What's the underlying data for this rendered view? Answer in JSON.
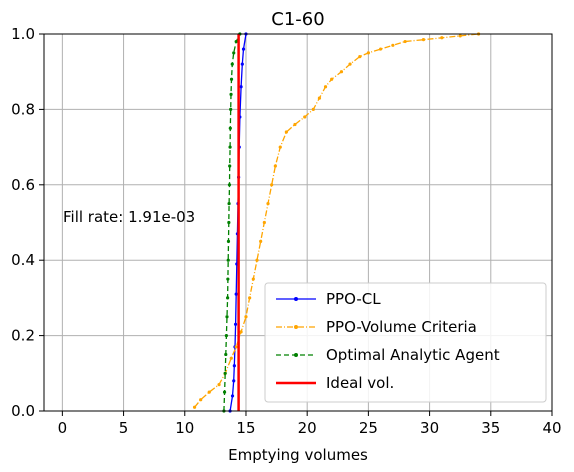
{
  "chart_data": {
    "type": "line",
    "title": "C1-60",
    "xlabel": "Emptying volumes",
    "ylabel": "",
    "xlim": [
      -1.5,
      40
    ],
    "ylim": [
      0,
      1
    ],
    "x_ticks": [
      "0",
      "5",
      "10",
      "15",
      "20",
      "25",
      "30",
      "35",
      "40"
    ],
    "y_ticks": [
      "0.0",
      "0.2",
      "0.4",
      "0.6",
      "0.8",
      "1.0"
    ],
    "grid": true,
    "legend_position": "lower-right",
    "annotation": "Fill rate: 1.91e-03",
    "series": [
      {
        "name": "PPO-CL",
        "color": "#0000ff",
        "style": "solid",
        "marker": "dot",
        "points": [
          [
            13.7,
            0.0
          ],
          [
            13.9,
            0.04
          ],
          [
            14.0,
            0.08
          ],
          [
            14.05,
            0.12
          ],
          [
            14.1,
            0.17
          ],
          [
            14.15,
            0.23
          ],
          [
            14.2,
            0.31
          ],
          [
            14.25,
            0.39
          ],
          [
            14.3,
            0.47
          ],
          [
            14.35,
            0.55
          ],
          [
            14.4,
            0.62
          ],
          [
            14.45,
            0.7
          ],
          [
            14.5,
            0.78
          ],
          [
            14.6,
            0.86
          ],
          [
            14.7,
            0.92
          ],
          [
            14.8,
            0.96
          ],
          [
            15.0,
            1.0
          ]
        ]
      },
      {
        "name": "PPO-Volume Criteria",
        "color": "#ffa500",
        "style": "dashdot",
        "marker": "dot",
        "points": [
          [
            10.8,
            0.01
          ],
          [
            11.3,
            0.03
          ],
          [
            12.0,
            0.05
          ],
          [
            12.8,
            0.07
          ],
          [
            13.3,
            0.1
          ],
          [
            13.8,
            0.14
          ],
          [
            14.2,
            0.17
          ],
          [
            14.6,
            0.21
          ],
          [
            15.0,
            0.25
          ],
          [
            15.3,
            0.3
          ],
          [
            15.6,
            0.35
          ],
          [
            15.9,
            0.4
          ],
          [
            16.2,
            0.45
          ],
          [
            16.5,
            0.5
          ],
          [
            16.8,
            0.55
          ],
          [
            17.1,
            0.6
          ],
          [
            17.4,
            0.65
          ],
          [
            17.8,
            0.7
          ],
          [
            18.3,
            0.74
          ],
          [
            19.0,
            0.76
          ],
          [
            19.8,
            0.78
          ],
          [
            20.5,
            0.8
          ],
          [
            21.0,
            0.83
          ],
          [
            21.5,
            0.86
          ],
          [
            22.0,
            0.88
          ],
          [
            22.8,
            0.9
          ],
          [
            23.5,
            0.92
          ],
          [
            24.3,
            0.94
          ],
          [
            25.0,
            0.95
          ],
          [
            26.0,
            0.96
          ],
          [
            27.0,
            0.97
          ],
          [
            28.0,
            0.98
          ],
          [
            29.5,
            0.985
          ],
          [
            31.0,
            0.99
          ],
          [
            32.5,
            0.995
          ],
          [
            34.0,
            1.0
          ]
        ]
      },
      {
        "name": "Optimal Analytic Agent",
        "color": "#008000",
        "style": "dashed",
        "marker": "dot",
        "points": [
          [
            13.2,
            0.0
          ],
          [
            13.25,
            0.05
          ],
          [
            13.3,
            0.1
          ],
          [
            13.35,
            0.15
          ],
          [
            13.4,
            0.2
          ],
          [
            13.45,
            0.25
          ],
          [
            13.5,
            0.3
          ],
          [
            13.52,
            0.35
          ],
          [
            13.55,
            0.4
          ],
          [
            13.57,
            0.45
          ],
          [
            13.6,
            0.5
          ],
          [
            13.62,
            0.55
          ],
          [
            13.65,
            0.6
          ],
          [
            13.67,
            0.65
          ],
          [
            13.7,
            0.7
          ],
          [
            13.72,
            0.75
          ],
          [
            13.75,
            0.8
          ],
          [
            13.78,
            0.84
          ],
          [
            13.82,
            0.88
          ],
          [
            13.88,
            0.92
          ],
          [
            14.0,
            0.95
          ],
          [
            14.2,
            0.98
          ],
          [
            14.5,
            1.0
          ]
        ]
      },
      {
        "name": "Ideal vol.",
        "color": "#ff0000",
        "style": "solid",
        "marker": "none",
        "points": [
          [
            14.4,
            0.0
          ],
          [
            14.4,
            1.0
          ]
        ]
      }
    ]
  }
}
